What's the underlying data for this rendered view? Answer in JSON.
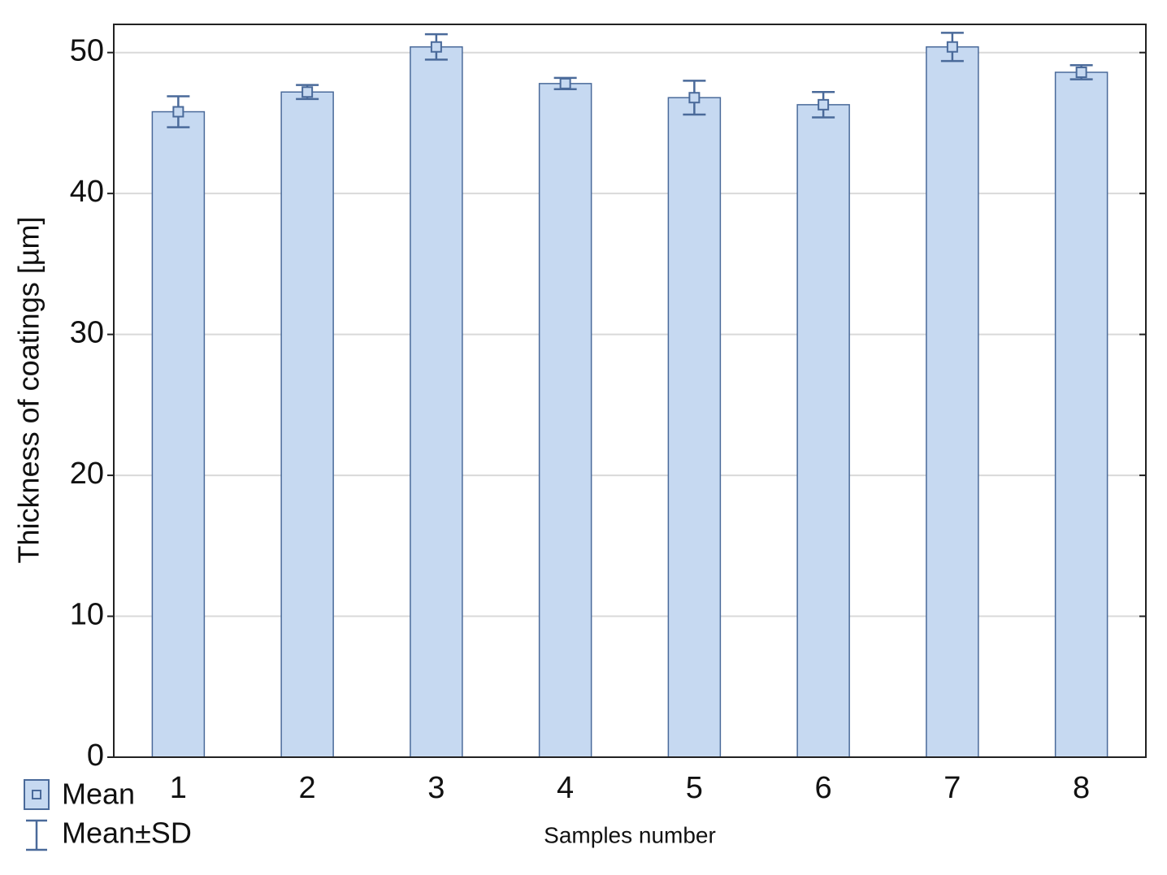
{
  "chart_data": {
    "type": "bar",
    "x_label": "Samples number",
    "y_label": "Thickness of coatings [µm]",
    "categories": [
      "1",
      "2",
      "3",
      "4",
      "5",
      "6",
      "7",
      "8"
    ],
    "series": [
      {
        "name": "Mean",
        "color": "#c6d9f1",
        "edge_color": "#4a6a9a",
        "values": [
          45.8,
          47.2,
          50.4,
          47.8,
          46.8,
          46.3,
          50.4,
          48.6
        ],
        "errors": [
          1.1,
          0.5,
          0.9,
          0.4,
          1.2,
          0.9,
          1.0,
          0.5
        ],
        "error_label": "Mean±SD"
      }
    ],
    "ylim": [
      0,
      52
    ],
    "yticks": [
      0,
      10,
      20,
      30,
      40,
      50
    ],
    "grid": true
  }
}
